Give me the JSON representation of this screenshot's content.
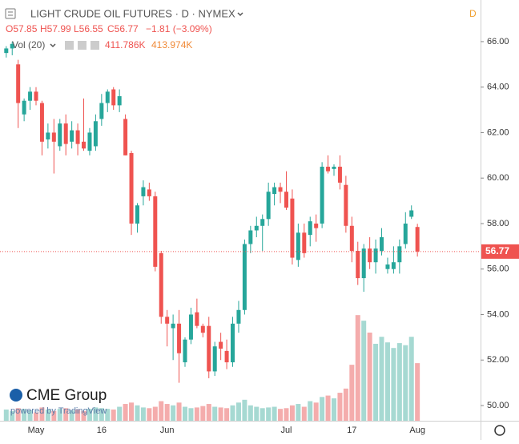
{
  "chart_data": {
    "type": "candlestick",
    "header": {
      "title": "LIGHT CRUDE OIL FUTURES · D · NYMEX",
      "open": "O57.85",
      "high": "H57.99",
      "low": "L56.55",
      "close": "C56.77",
      "change": "−1.81 (−3.09%)",
      "vol_title": "Vol (20)",
      "vol_value": "411.786K",
      "vol_ma": "413.974K",
      "badge": "D"
    },
    "logo": {
      "name": "CME Group",
      "powered": "powered by TradingView"
    },
    "categories": [
      null,
      null,
      null,
      null,
      null,
      "May",
      null,
      null,
      null,
      null,
      null,
      null,
      null,
      null,
      null,
      null,
      "16",
      null,
      null,
      null,
      null,
      null,
      null,
      null,
      null,
      null,
      null,
      "Jun",
      null,
      null,
      null,
      null,
      null,
      null,
      null,
      null,
      null,
      null,
      null,
      null,
      null,
      null,
      null,
      null,
      null,
      null,
      null,
      "Jul",
      null,
      null,
      null,
      null,
      null,
      null,
      null,
      null,
      null,
      null,
      "17",
      null,
      null,
      null,
      null,
      null,
      null,
      null,
      null,
      null,
      null,
      "Aug"
    ],
    "open": [
      65.5,
      65.7,
      65.0,
      62.8,
      63.4,
      63.8,
      63.3,
      61.7,
      62.0,
      61.4,
      62.4,
      61.6,
      62.1,
      61.6,
      61.2,
      61.4,
      62.6,
      63.3,
      63.9,
      63.2,
      62.6,
      61.1,
      58.0,
      59.2,
      59.5,
      59.2,
      56.7,
      53.9,
      53.4,
      53.6,
      51.9,
      52.9,
      54.1,
      53.5,
      53.5,
      51.5,
      52.8,
      52.4,
      51.9,
      53.6,
      54.2,
      57.1,
      57.7,
      57.9,
      58.2,
      59.3,
      59.6,
      59.4,
      59.1,
      56.4,
      57.6,
      57.5,
      58.0,
      58.0,
      60.5,
      60.4,
      60.5,
      59.7,
      57.9,
      56.8,
      55.6,
      56.9,
      56.3,
      56.8,
      56.0,
      56.0,
      56.3,
      57.1,
      58.3,
      57.85
    ],
    "high": [
      65.8,
      66.0,
      65.2,
      63.5,
      64.0,
      64.0,
      63.4,
      62.4,
      62.6,
      62.6,
      62.8,
      62.5,
      62.4,
      63.5,
      62.2,
      62.8,
      63.7,
      63.9,
      64.0,
      63.9,
      62.8,
      61.2,
      58.9,
      59.9,
      59.8,
      59.4,
      56.8,
      54.2,
      54.0,
      54.2,
      53.0,
      54.3,
      54.7,
      53.6,
      53.9,
      52.8,
      53.2,
      52.9,
      53.9,
      54.6,
      57.3,
      57.9,
      58.3,
      58.4,
      59.8,
      59.8,
      59.8,
      60.3,
      59.5,
      58.0,
      58.0,
      58.3,
      58.4,
      60.7,
      61.0,
      60.6,
      61.0,
      60.1,
      58.3,
      57.2,
      57.1,
      57.4,
      57.3,
      57.8,
      56.5,
      57.0,
      57.3,
      58.5,
      58.8,
      57.99
    ],
    "low": [
      65.3,
      65.4,
      62.2,
      62.5,
      63.0,
      63.2,
      61.0,
      61.3,
      60.2,
      61.2,
      61.0,
      61.3,
      61.0,
      61.2,
      61.0,
      61.2,
      62.3,
      62.9,
      63.0,
      62.9,
      61.0,
      57.5,
      57.6,
      58.8,
      59.0,
      55.9,
      53.6,
      52.6,
      52.0,
      51.0,
      51.7,
      52.7,
      53.4,
      53.0,
      51.2,
      51.3,
      52.0,
      51.6,
      51.7,
      53.2,
      54.0,
      56.7,
      57.4,
      56.8,
      57.9,
      58.8,
      58.9,
      58.6,
      56.2,
      56.1,
      56.5,
      57.0,
      57.2,
      57.8,
      60.2,
      60.1,
      59.5,
      57.6,
      56.3,
      55.3,
      55.0,
      56.0,
      55.8,
      56.6,
      55.8,
      55.8,
      55.8,
      56.9,
      58.2,
      56.55
    ],
    "close": [
      65.7,
      65.9,
      63.3,
      63.4,
      63.8,
      63.4,
      61.6,
      62.0,
      61.6,
      62.4,
      61.5,
      62.1,
      61.5,
      61.3,
      62.0,
      62.5,
      63.3,
      63.8,
      63.2,
      63.6,
      61.0,
      58.0,
      58.8,
      59.6,
      59.2,
      56.1,
      53.9,
      53.6,
      53.6,
      52.3,
      52.9,
      54.0,
      53.5,
      53.2,
      51.5,
      52.6,
      52.5,
      51.9,
      53.6,
      54.2,
      57.1,
      57.7,
      57.9,
      58.2,
      59.4,
      59.6,
      59.4,
      58.7,
      56.5,
      57.6,
      56.7,
      58.1,
      57.8,
      60.5,
      60.3,
      60.5,
      59.8,
      57.9,
      56.8,
      55.6,
      56.9,
      56.3,
      56.9,
      57.4,
      56.2,
      56.3,
      57.0,
      58.0,
      58.58,
      56.77
    ],
    "volume": [
      80000,
      70000,
      90000,
      85000,
      75000,
      60000,
      95000,
      80000,
      70000,
      85000,
      90000,
      75000,
      80000,
      70000,
      85000,
      95000,
      90000,
      85000,
      80000,
      100000,
      120000,
      130000,
      110000,
      95000,
      90000,
      100000,
      140000,
      120000,
      110000,
      130000,
      100000,
      90000,
      95000,
      105000,
      120000,
      100000,
      95000,
      90000,
      110000,
      130000,
      150000,
      110000,
      100000,
      90000,
      95000,
      100000,
      85000,
      90000,
      110000,
      120000,
      100000,
      140000,
      130000,
      170000,
      180000,
      160000,
      200000,
      230000,
      400000,
      755000,
      715000,
      630000,
      550000,
      600000,
      560000,
      520000,
      555000,
      540000,
      600000,
      411786
    ],
    "volume_lim": [
      0,
      1300000
    ],
    "ylim": [
      49.33,
      67.83
    ],
    "yticks": [
      {
        "value": 50,
        "label": "50.00"
      },
      {
        "value": 52,
        "label": "52.00"
      },
      {
        "value": 54,
        "label": "54.00"
      },
      {
        "value": 56,
        "label": "56.00"
      },
      {
        "value": 58,
        "label": "58.00"
      },
      {
        "value": 60,
        "label": "60.00"
      },
      {
        "value": 62,
        "label": "62.00"
      },
      {
        "value": 64,
        "label": "64.00"
      },
      {
        "value": 66,
        "label": "66.00"
      }
    ],
    "last_price_label": "56.77",
    "up_color": "#26a69a",
    "down_color": "#ef5350",
    "up_volume_color": "#a6d9d2",
    "down_volume_color": "#f4acac"
  }
}
